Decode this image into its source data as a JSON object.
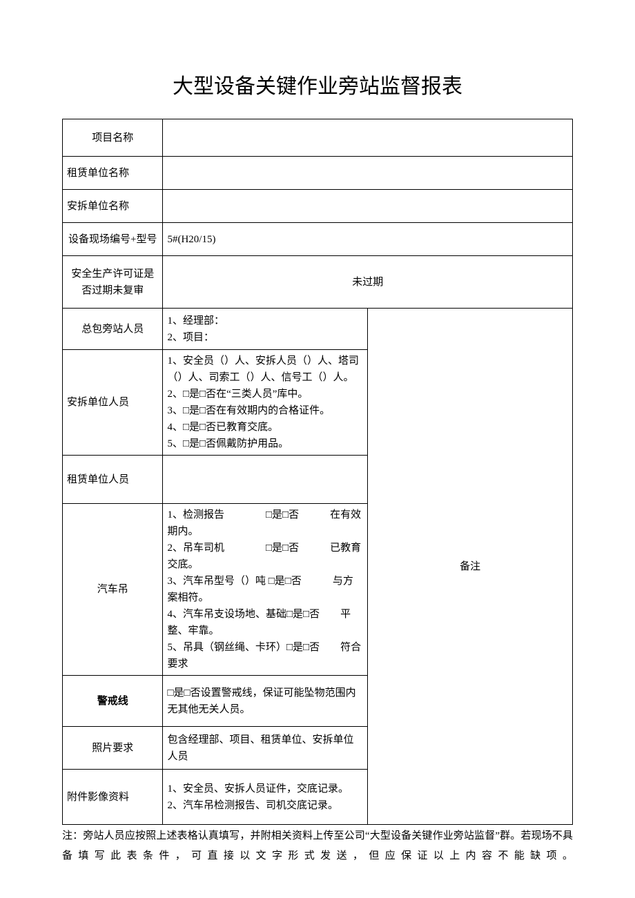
{
  "title": "大型设备关键作业旁站监督报表",
  "rows": {
    "project_name": {
      "label": "项目名称",
      "value": ""
    },
    "lease_unit": {
      "label": "租赁单位名称",
      "value": ""
    },
    "install_unit": {
      "label": "安拆单位名称",
      "value": ""
    },
    "equipment_model": {
      "label": "设备现场编号+型号",
      "value": "5#(H20/15)"
    },
    "safety_cert": {
      "label": "安全生产许可证是否过期未复审",
      "value": "未过期"
    },
    "general_station": {
      "label": "总包旁站人员",
      "value": "1、经理部：\n2、项目：",
      "remark": "备注"
    },
    "install_personnel": {
      "label": "安拆单位人员",
      "value": "1、安全员（）人、安拆人员（）人、塔司（）人、司索工（）人、信号工（）人。\n2、□是□否在“三类人员”库中。\n3、□是□否在有效期内的合格证件。\n4、□是□否已教育交底。\n5、□是□否佩戴防护用品。"
    },
    "lease_personnel": {
      "label": "租赁单位人员",
      "value": ""
    },
    "truck_crane": {
      "label": "汽车吊",
      "value": "1、检测报告　　　　□是□否　　　在有效期内。\n2、吊车司机　　　　□是□否　　　已教育交底。\n3、汽车吊型号（）吨 □是□否　　　与方案相符。\n4、汽车吊支设场地、基础□是□否　　平整、牢靠。\n5、吊具（钢丝绳、卡环）□是□否　　符合要求"
    },
    "cordon": {
      "label": "警戒线",
      "value": "□是□否设置警戒线，保证可能坠物范围内无其他无关人员。"
    },
    "photo_req": {
      "label": "照片要求",
      "value": "包含经理部、项目、租赁单位、安拆单位人员"
    },
    "attachment": {
      "label": "附件影像资料",
      "value": "1、安全员、安拆人员证件，交底记录。\n2、汽车吊检测报告、司机交底记录。"
    }
  },
  "footnote": "注：旁站人员应按照上述表格认真填写，并附相关资料上传至公司“大型设备关键作业旁站监督”群。若现场不具备填写此表条件，可直接以文字形式发送，但应保证以上内容不能缺项。",
  "colors": {
    "text": "#000000",
    "background": "#ffffff",
    "border": "#000000"
  },
  "fonts": {
    "title_size": 30,
    "body_size": 15,
    "family": "SimSun"
  }
}
